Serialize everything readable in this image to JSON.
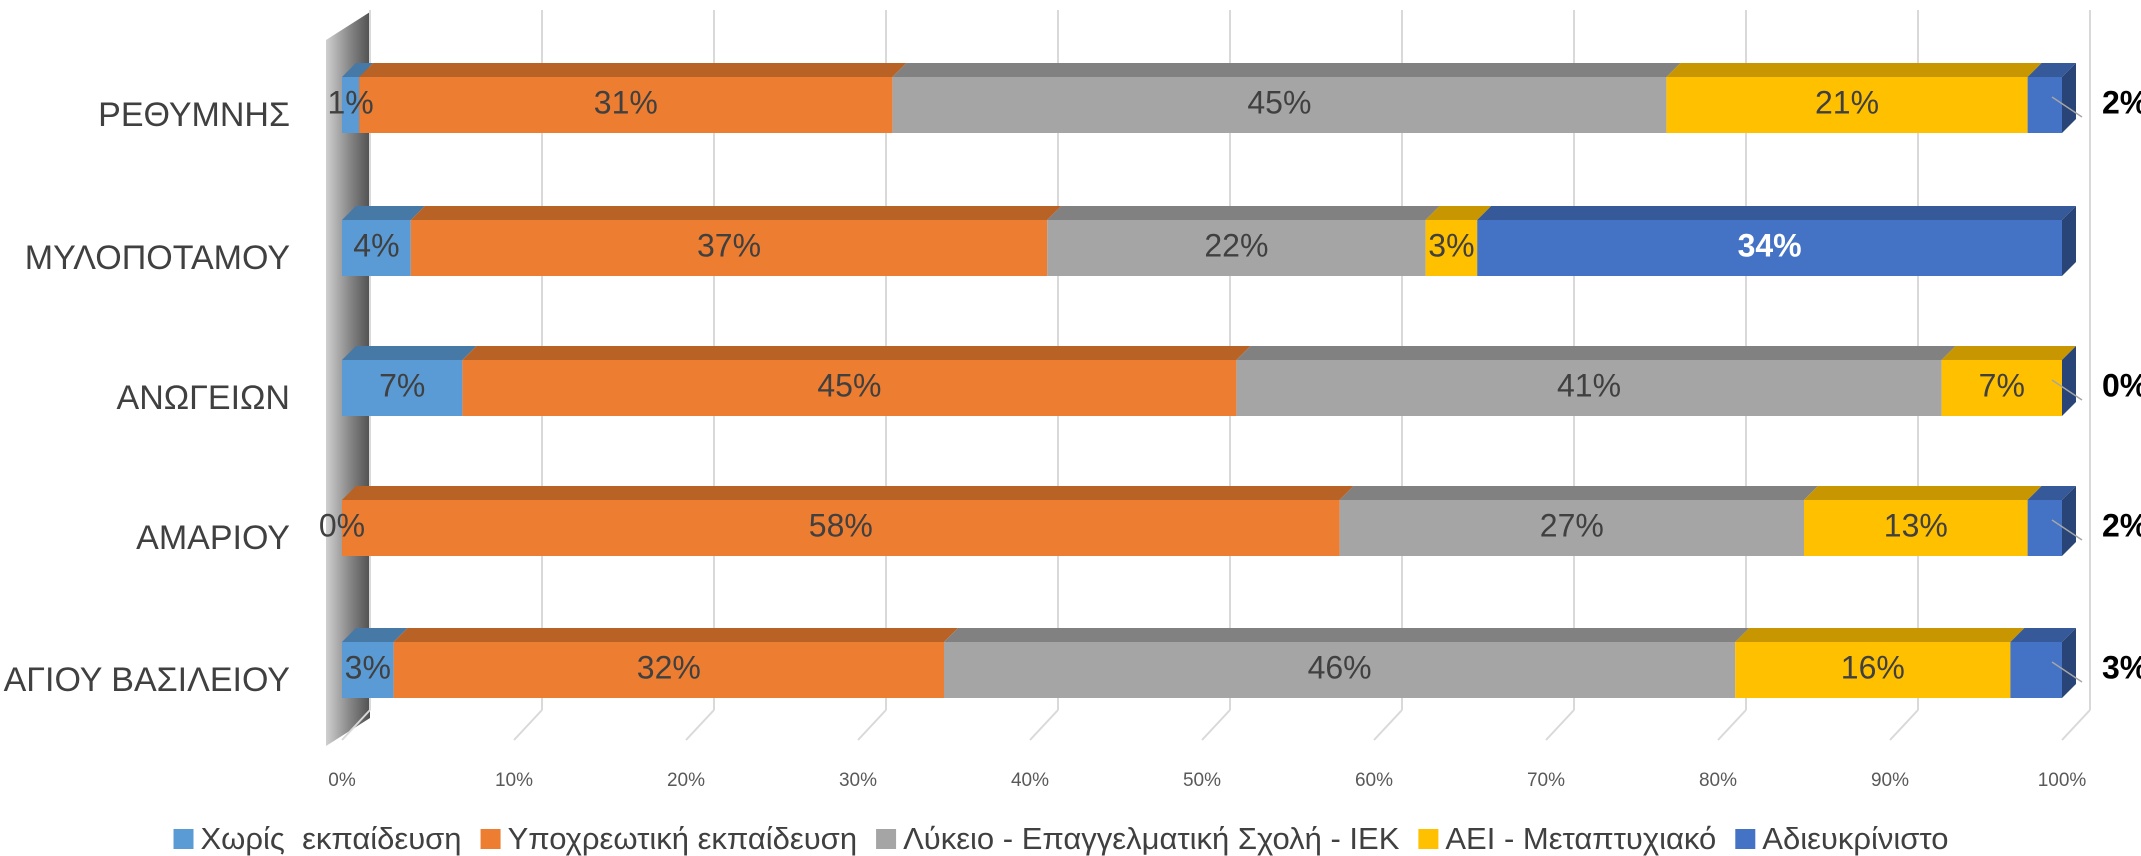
{
  "chart_data": {
    "type": "bar",
    "orientation": "horizontal",
    "stacked": true,
    "categories": [
      "ΡΕΘΥΜΝΗΣ",
      "ΜΥΛΟΠΟΤΑΜΟΥ",
      "ΑΝΩΓΕΙΩΝ",
      "ΑΜΑΡΙΟΥ",
      "ΑΓΙΟΥ ΒΑΣΙΛΕΙΟΥ"
    ],
    "series": [
      {
        "name": "Χωρίς  εκπαίδευση",
        "color": "#5b9bd5",
        "values": [
          1,
          4,
          7,
          0,
          3
        ],
        "value_labels": [
          "1%",
          "4%",
          "7%",
          "0%",
          "3%"
        ]
      },
      {
        "name": "Υποχρεωτική εκπαίδευση",
        "color": "#ed7d31",
        "values": [
          31,
          37,
          45,
          58,
          32
        ],
        "value_labels": [
          "31%",
          "37%",
          "45%",
          "58%",
          "32%"
        ]
      },
      {
        "name": "Λύκειο - Επαγγελματική Σχολή - ΙΕΚ",
        "color": "#a5a5a5",
        "values": [
          45,
          22,
          41,
          27,
          46
        ],
        "value_labels": [
          "45%",
          "22%",
          "41%",
          "27%",
          "46%"
        ]
      },
      {
        "name": "ΑΕΙ - Μεταπτυχιακό",
        "color": "#ffc000",
        "values": [
          21,
          3,
          7,
          13,
          16
        ],
        "value_labels": [
          "21%",
          "3%",
          "7%",
          "13%",
          "16%"
        ]
      },
      {
        "name": "Αδιευκρίνιστο",
        "color": "#4472c4",
        "values": [
          2,
          34,
          0,
          2,
          3
        ],
        "value_labels": [
          "2%",
          "34%",
          "0%",
          "2%",
          "3%"
        ]
      }
    ],
    "xlim": [
      0,
      100
    ],
    "xticks": [
      {
        "value": 0,
        "label": "0%"
      },
      {
        "value": 10,
        "label": "10%"
      },
      {
        "value": 20,
        "label": "20%"
      },
      {
        "value": 30,
        "label": "30%"
      },
      {
        "value": 40,
        "label": "40%"
      },
      {
        "value": 50,
        "label": "50%"
      },
      {
        "value": 60,
        "label": "60%"
      },
      {
        "value": 70,
        "label": "70%"
      },
      {
        "value": 80,
        "label": "80%"
      },
      {
        "value": 90,
        "label": "90%"
      },
      {
        "value": 100,
        "label": "100%"
      }
    ],
    "grid": true,
    "legend": "bottom"
  }
}
